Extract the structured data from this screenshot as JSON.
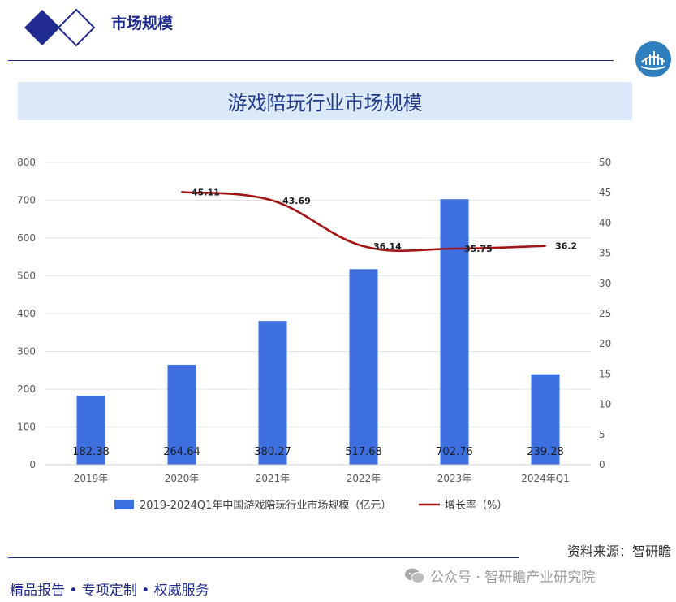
{
  "header": {
    "title": "市场规模"
  },
  "title_band": {
    "text": "游戏陪玩行业市场规模"
  },
  "source": {
    "text": "资料来源：智研瞻"
  },
  "footer": {
    "text": "精品报告 •  专项定制 • 权威服务"
  },
  "watermark": {
    "text": "公众号 · 智研瞻产业研究院"
  },
  "colors": {
    "bar": "#3d6fe0",
    "line": "#a31515",
    "brand": "#1f2b8f",
    "band": "#dce9f8"
  },
  "chart_data": {
    "type": "bar",
    "categories": [
      "2019年",
      "2020年",
      "2021年",
      "2022年",
      "2023年",
      "2024年Q1"
    ],
    "series": [
      {
        "name": "2019-2024Q1年中国游戏陪玩行业市场规模（亿元）",
        "type": "bar",
        "axis": "left",
        "values": [
          182.38,
          264.64,
          380.27,
          517.68,
          702.76,
          239.28
        ],
        "labels": [
          "182.38",
          "264.64",
          "380.27",
          "517.68",
          "702.76",
          "239.28"
        ]
      },
      {
        "name": "增长率（%）",
        "type": "line",
        "axis": "right",
        "values": [
          null,
          45.11,
          43.69,
          36.14,
          35.75,
          36.2
        ],
        "labels": [
          "",
          "45.11",
          "43.69",
          "36.14",
          "35.75",
          "36.2"
        ]
      }
    ],
    "y_left": {
      "min": 0,
      "max": 800,
      "ticks": [
        "0",
        "100",
        "200",
        "300",
        "400",
        "500",
        "600",
        "700",
        "800"
      ]
    },
    "y_right": {
      "min": 0,
      "max": 50,
      "ticks": [
        "0",
        "5",
        "10",
        "15",
        "20",
        "25",
        "30",
        "35",
        "40",
        "45",
        "50"
      ]
    },
    "grid": true,
    "legend": "bottom"
  }
}
